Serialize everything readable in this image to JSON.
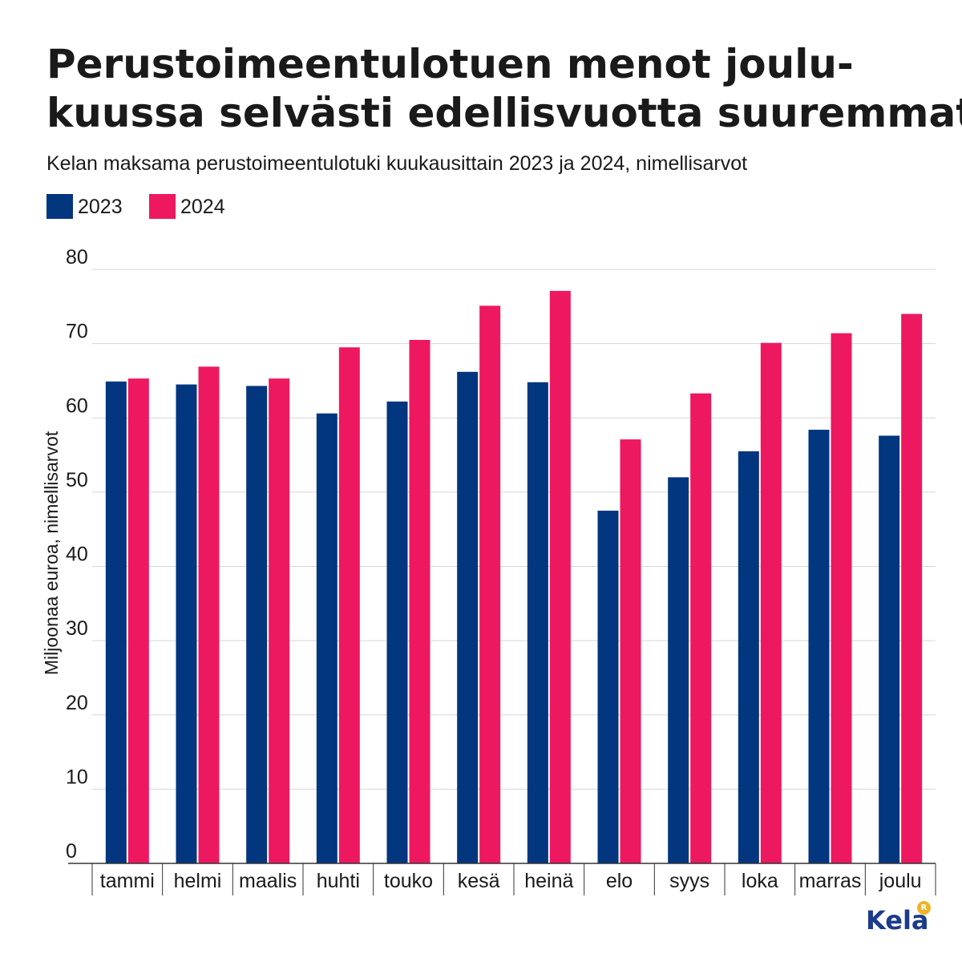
{
  "title_lines": [
    "Perustoimeentulotuen menot joulu-",
    "kuussa selvästi edellisvuotta suuremmat"
  ],
  "subtitle": "Kelan maksama perustoimeentulotuki kuukausittain 2023 ja 2024, nimellisarvot",
  "logo": {
    "text": "Kela",
    "badge": "R"
  },
  "chart_data": {
    "type": "bar",
    "title": "Perustoimeentulotuen menot joulukuussa selvästi edellisvuotta suuremmat",
    "subtitle": "Kelan maksama perustoimeentulotuki kuukausittain 2023 ja 2024, nimellisarvot",
    "xlabel": "",
    "ylabel": "Miljoonaa euroa, nimellisarvot",
    "ylim": [
      0,
      80
    ],
    "yticks": [
      0,
      10,
      20,
      30,
      40,
      50,
      60,
      70,
      80
    ],
    "grid": true,
    "legend": "top-left",
    "categories": [
      "tammi",
      "helmi",
      "maalis",
      "huhti",
      "touko",
      "kesä",
      "heinä",
      "elo",
      "syys",
      "loka",
      "marras",
      "joulu"
    ],
    "series": [
      {
        "name": "2023",
        "color": "#02367f",
        "values": [
          64.9,
          64.5,
          64.3,
          60.6,
          62.2,
          66.2,
          64.8,
          47.5,
          52.0,
          55.5,
          58.4,
          57.6
        ]
      },
      {
        "name": "2024",
        "color": "#ee1861",
        "values": [
          65.3,
          66.9,
          65.3,
          69.5,
          70.5,
          75.1,
          77.1,
          57.1,
          63.3,
          70.1,
          71.4,
          74.0
        ]
      }
    ]
  }
}
